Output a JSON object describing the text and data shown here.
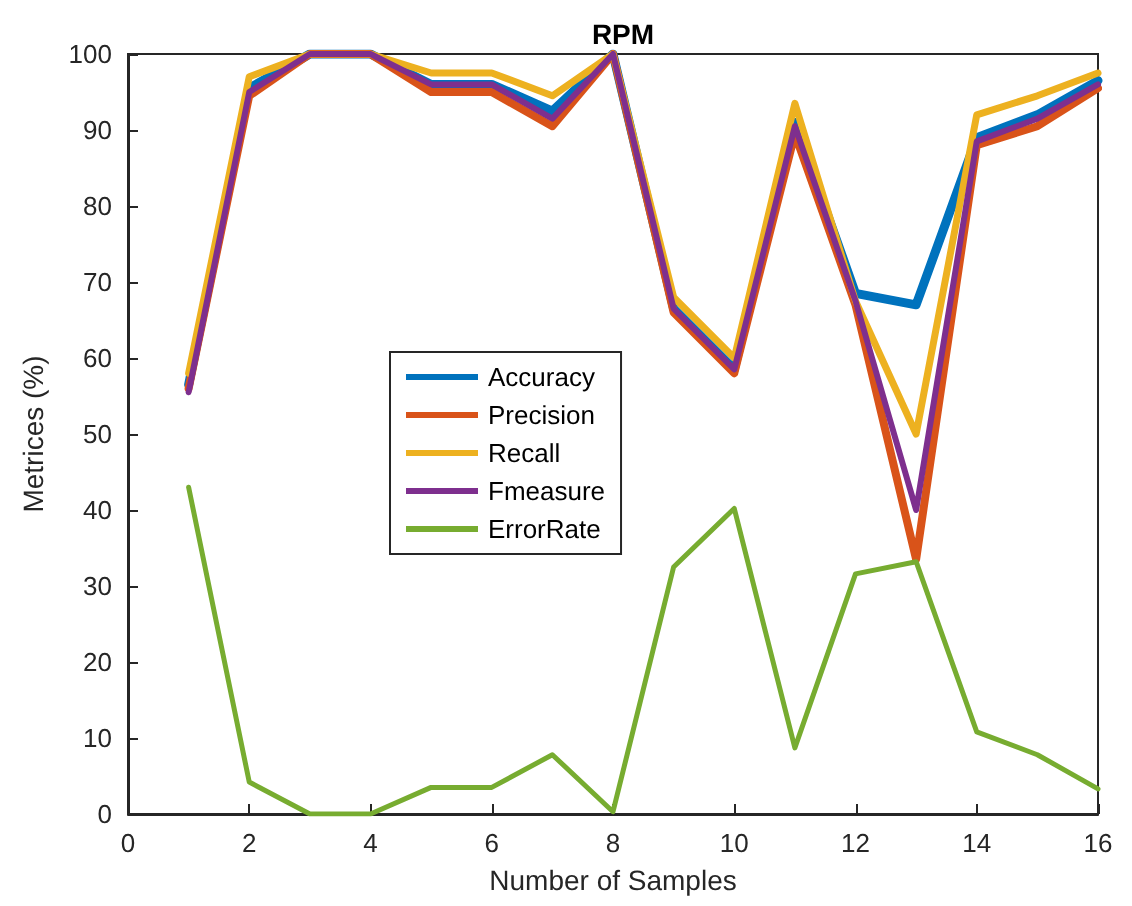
{
  "chart_data": {
    "type": "line",
    "title": "RPM",
    "xlabel": "Number of Samples",
    "ylabel": "Metrices (%)",
    "x": [
      1,
      2,
      3,
      4,
      5,
      6,
      7,
      8,
      9,
      10,
      11,
      12,
      13,
      14,
      15,
      16
    ],
    "series": [
      {
        "name": "Accuracy",
        "color": "#0072bd",
        "values": [
          56.5,
          95.5,
          100,
          100,
          96,
          96,
          92.5,
          100,
          66.5,
          58.5,
          91,
          68.5,
          67,
          89,
          92,
          96.5
        ]
      },
      {
        "name": "Precision",
        "color": "#d95319",
        "values": [
          56,
          94.5,
          100,
          100,
          95,
          95,
          90.5,
          100,
          66,
          58,
          89.5,
          67,
          33.5,
          88,
          90.5,
          95.5
        ]
      },
      {
        "name": "Recall",
        "color": "#edb120",
        "values": [
          58,
          97,
          100,
          100,
          97.5,
          97.5,
          94.5,
          100,
          68,
          60,
          93.5,
          67.5,
          50,
          92,
          94.5,
          97.5
        ]
      },
      {
        "name": "Fmeasure",
        "color": "#7e2f8e",
        "values": [
          55.5,
          95,
          100,
          100,
          96,
          96,
          91.5,
          100,
          66.5,
          58.5,
          90.5,
          67.5,
          40,
          88.5,
          91.5,
          96
        ]
      },
      {
        "name": "ErrorRate",
        "color": "#77ac30",
        "values": [
          43,
          4.2,
          0,
          0,
          3.5,
          3.5,
          7.8,
          0.3,
          32.5,
          40.2,
          8.7,
          31.6,
          33.2,
          10.8,
          7.8,
          3.3
        ]
      }
    ],
    "xlim": [
      0,
      16
    ],
    "xticks": [
      0,
      2,
      4,
      6,
      8,
      10,
      12,
      14,
      16
    ],
    "ylim": [
      0,
      100
    ],
    "yticks": [
      0,
      10,
      20,
      30,
      40,
      50,
      60,
      70,
      80,
      90,
      100
    ],
    "grid": false,
    "legend": "left",
    "marker": "none",
    "line_style": "solid"
  }
}
